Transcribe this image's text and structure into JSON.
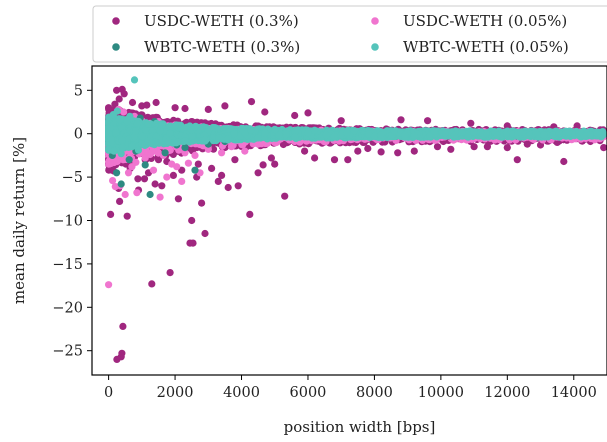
{
  "chart_data": {
    "type": "scatter",
    "title": "",
    "xlabel": "position width [bps]",
    "ylabel": "mean daily return [%]",
    "xlim": [
      -500,
      15000
    ],
    "ylim": [
      -27.8,
      7.8
    ],
    "xticks": [
      0,
      2000,
      4000,
      6000,
      8000,
      10000,
      12000,
      14000
    ],
    "yticks": [
      5,
      0,
      -5,
      -10,
      -15,
      -20,
      -25
    ],
    "grid": false,
    "legend_position": "top (above plot), 2 columns",
    "series": [
      {
        "name": "USDC-WETH (0.3%)",
        "color": "#a0277f",
        "points": [
          [
            60,
            -9.3
          ],
          [
            250,
            -26.0
          ],
          [
            330,
            -7.8
          ],
          [
            380,
            -25.7
          ],
          [
            430,
            -22.2
          ],
          [
            400,
            -25.3
          ],
          [
            560,
            -9.5
          ],
          [
            190,
            3.4
          ],
          [
            240,
            5.0
          ],
          [
            320,
            4.0
          ],
          [
            410,
            5.1
          ],
          [
            470,
            4.6
          ],
          [
            720,
            3.6
          ],
          [
            520,
            -3.5
          ],
          [
            880,
            -5.2
          ],
          [
            900,
            -6.5
          ],
          [
            1000,
            3.2
          ],
          [
            1080,
            -5.2
          ],
          [
            1300,
            -17.3
          ],
          [
            1430,
            3.6
          ],
          [
            1500,
            -3.0
          ],
          [
            1750,
            -3.2
          ],
          [
            1850,
            -16.0
          ],
          [
            1950,
            -4.8
          ],
          [
            2000,
            3.0
          ],
          [
            2200,
            -4.2
          ],
          [
            2450,
            -12.6
          ],
          [
            2500,
            -10.0
          ],
          [
            2540,
            -12.6
          ],
          [
            2700,
            -3.5
          ],
          [
            2900,
            -11.5
          ],
          [
            3100,
            -4.0
          ],
          [
            3500,
            3.2
          ],
          [
            3800,
            -3.0
          ],
          [
            4250,
            -9.3
          ],
          [
            4300,
            3.7
          ],
          [
            4650,
            -3.6
          ],
          [
            5300,
            -7.2
          ],
          [
            6200,
            -2.8
          ],
          [
            6800,
            -3.0
          ],
          [
            7200,
            -3.0
          ],
          [
            7500,
            -2.0
          ],
          [
            8200,
            -2.1
          ],
          [
            8700,
            -2.2
          ],
          [
            9200,
            -2.0
          ],
          [
            10300,
            -1.8
          ],
          [
            11000,
            -1.5
          ],
          [
            11400,
            -1.5
          ],
          [
            12000,
            -1.6
          ],
          [
            12300,
            -3.0
          ],
          [
            12600,
            -1.2
          ],
          [
            13500,
            -1.0
          ],
          [
            13700,
            -3.2
          ],
          [
            14500,
            -0.9
          ],
          [
            14900,
            -1.6
          ],
          [
            5600,
            2.1
          ],
          [
            7000,
            1.5
          ],
          [
            8800,
            1.6
          ],
          [
            9600,
            1.5
          ],
          [
            10900,
            1.2
          ],
          [
            12000,
            0.9
          ],
          [
            13400,
            0.8
          ],
          [
            14100,
            0.9
          ],
          [
            3300,
            -5.5
          ],
          [
            1600,
            -6.0
          ],
          [
            2100,
            -7.5
          ],
          [
            650,
            -4.0
          ],
          [
            780,
            -2.7
          ],
          [
            1200,
            -4.5
          ],
          [
            2650,
            -5.0
          ],
          [
            3900,
            -6.0
          ],
          [
            5000,
            -3.5
          ],
          [
            6000,
            2.4
          ],
          [
            4700,
            2.5
          ],
          [
            3000,
            2.8
          ],
          [
            2300,
            2.9
          ],
          [
            1150,
            3.3
          ],
          [
            5900,
            -2.0
          ],
          [
            7800,
            -1.7
          ],
          [
            9900,
            -1.5
          ],
          [
            13000,
            -1.3
          ],
          [
            4500,
            -4.5
          ],
          [
            3600,
            -6.2
          ],
          [
            1400,
            -5.8
          ],
          [
            700,
            -3.7
          ],
          [
            300,
            -6.3
          ],
          [
            150,
            -4.3
          ],
          [
            2800,
            -8.0
          ],
          [
            3400,
            -4.8
          ],
          [
            4900,
            -2.8
          ]
        ]
      },
      {
        "name": "USDC-WETH (0.05%)",
        "color": "#f075cf",
        "points": [
          [
            0,
            -17.4
          ],
          [
            120,
            -5.4
          ],
          [
            200,
            -6.1
          ],
          [
            260,
            -3.2
          ],
          [
            350,
            -6.0
          ],
          [
            420,
            -2.9
          ],
          [
            600,
            -4.5
          ],
          [
            700,
            -3.8
          ],
          [
            820,
            -3.3
          ],
          [
            950,
            -2.2
          ],
          [
            1100,
            -2.8
          ],
          [
            1350,
            -4.2
          ],
          [
            1550,
            -7.3
          ],
          [
            1650,
            -2.5
          ],
          [
            1900,
            -3.5
          ],
          [
            2050,
            -3.8
          ],
          [
            2300,
            -2.2
          ],
          [
            2400,
            -3.4
          ],
          [
            2600,
            -2.5
          ],
          [
            2750,
            -4.5
          ],
          [
            3000,
            -1.8
          ],
          [
            3400,
            -2.2
          ],
          [
            3700,
            -1.5
          ],
          [
            4100,
            -2.0
          ],
          [
            4500,
            -1.2
          ],
          [
            5000,
            -1.0
          ],
          [
            5600,
            -0.9
          ],
          [
            6100,
            -0.8
          ],
          [
            7000,
            -0.7
          ],
          [
            8000,
            -0.5
          ],
          [
            9200,
            -0.6
          ],
          [
            10500,
            -0.4
          ],
          [
            11200,
            -0.4
          ],
          [
            12500,
            -0.5
          ],
          [
            13800,
            -0.2
          ],
          [
            14700,
            -0.3
          ],
          [
            300,
            2.8
          ],
          [
            450,
            2.5
          ],
          [
            620,
            1.8
          ],
          [
            780,
            2.0
          ],
          [
            1000,
            1.5
          ],
          [
            1250,
            1.2
          ],
          [
            1500,
            1.4
          ],
          [
            2000,
            1.0
          ],
          [
            2800,
            0.8
          ],
          [
            3600,
            0.6
          ],
          [
            4800,
            0.5
          ],
          [
            6400,
            0.4
          ],
          [
            8500,
            0.3
          ],
          [
            11000,
            0.2
          ],
          [
            14200,
            0.2
          ],
          [
            1750,
            -5.0
          ],
          [
            2200,
            -5.5
          ],
          [
            850,
            -6.8
          ],
          [
            500,
            -7.0
          ]
        ]
      },
      {
        "name": "WBTC-WETH (0.3%)",
        "color": "#2e8a82",
        "points": [
          [
            110,
            -2.5
          ],
          [
            240,
            -4.5
          ],
          [
            380,
            -5.8
          ],
          [
            620,
            -3.0
          ],
          [
            780,
            0.6
          ],
          [
            950,
            1.8
          ],
          [
            1100,
            -3.6
          ],
          [
            1250,
            -7.0
          ],
          [
            1380,
            1.4
          ],
          [
            1700,
            -2.2
          ],
          [
            2050,
            -1.3
          ],
          [
            2300,
            -1.6
          ],
          [
            2600,
            -4.2
          ],
          [
            3000,
            -1.2
          ],
          [
            3500,
            -0.9
          ],
          [
            4200,
            -0.6
          ],
          [
            5000,
            -0.5
          ],
          [
            6200,
            -0.3
          ],
          [
            7500,
            -0.4
          ],
          [
            9000,
            -0.3
          ],
          [
            10800,
            -0.2
          ],
          [
            12500,
            -0.2
          ],
          [
            14000,
            -0.1
          ],
          [
            500,
            1.2
          ],
          [
            820,
            -2.0
          ],
          [
            1550,
            0.9
          ],
          [
            2400,
            0.7
          ],
          [
            3300,
            0.5
          ],
          [
            4600,
            0.4
          ],
          [
            6000,
            0.3
          ],
          [
            8200,
            0.2
          ],
          [
            11500,
            0.1
          ],
          [
            14600,
            0.1
          ]
        ]
      },
      {
        "name": "WBTC-WETH (0.05%)",
        "color": "#55c4bb",
        "points": [
          [
            780,
            6.2
          ],
          [
            140,
            2.2
          ],
          [
            230,
            -1.9
          ],
          [
            330,
            1.6
          ],
          [
            420,
            -1.6
          ],
          [
            560,
            1.4
          ],
          [
            700,
            -1.5
          ],
          [
            870,
            1.2
          ],
          [
            1000,
            -1.2
          ],
          [
            1200,
            1.1
          ],
          [
            1400,
            -1.0
          ],
          [
            1600,
            1.0
          ],
          [
            1800,
            -0.9
          ],
          [
            2000,
            0.9
          ],
          [
            2300,
            -0.8
          ],
          [
            2600,
            0.8
          ],
          [
            2900,
            -0.7
          ],
          [
            3200,
            0.7
          ],
          [
            3600,
            -0.6
          ],
          [
            4000,
            0.6
          ],
          [
            4500,
            -0.5
          ],
          [
            5000,
            0.5
          ],
          [
            5600,
            -0.4
          ],
          [
            6200,
            0.4
          ],
          [
            6800,
            -0.35
          ],
          [
            7400,
            0.35
          ],
          [
            8000,
            -0.3
          ],
          [
            8600,
            0.3
          ],
          [
            9200,
            -0.25
          ],
          [
            9800,
            0.25
          ],
          [
            10400,
            -0.2
          ],
          [
            11000,
            0.2
          ],
          [
            11700,
            -0.2
          ],
          [
            12400,
            0.15
          ],
          [
            13100,
            -0.15
          ],
          [
            13800,
            0.15
          ],
          [
            14500,
            -0.1
          ],
          [
            260,
            2.6
          ],
          [
            380,
            -2.3
          ],
          [
            160,
            -2.0
          ],
          [
            640,
            2.0
          ],
          [
            900,
            -1.9
          ]
        ]
      }
    ],
    "dense_bands": [
      {
        "series_index": 0,
        "x_end": 14900,
        "upper_start": 3.0,
        "lower_start": -4.2,
        "density": 3200
      },
      {
        "series_index": 1,
        "x_end": 14900,
        "upper_start": 1.6,
        "lower_start": -3.5,
        "density": 2600
      },
      {
        "series_index": 2,
        "x_end": 14900,
        "upper_start": 1.0,
        "lower_start": -1.4,
        "density": 900
      },
      {
        "series_index": 3,
        "x_end": 14900,
        "upper_start": 1.9,
        "lower_start": -1.9,
        "density": 4200
      }
    ]
  }
}
